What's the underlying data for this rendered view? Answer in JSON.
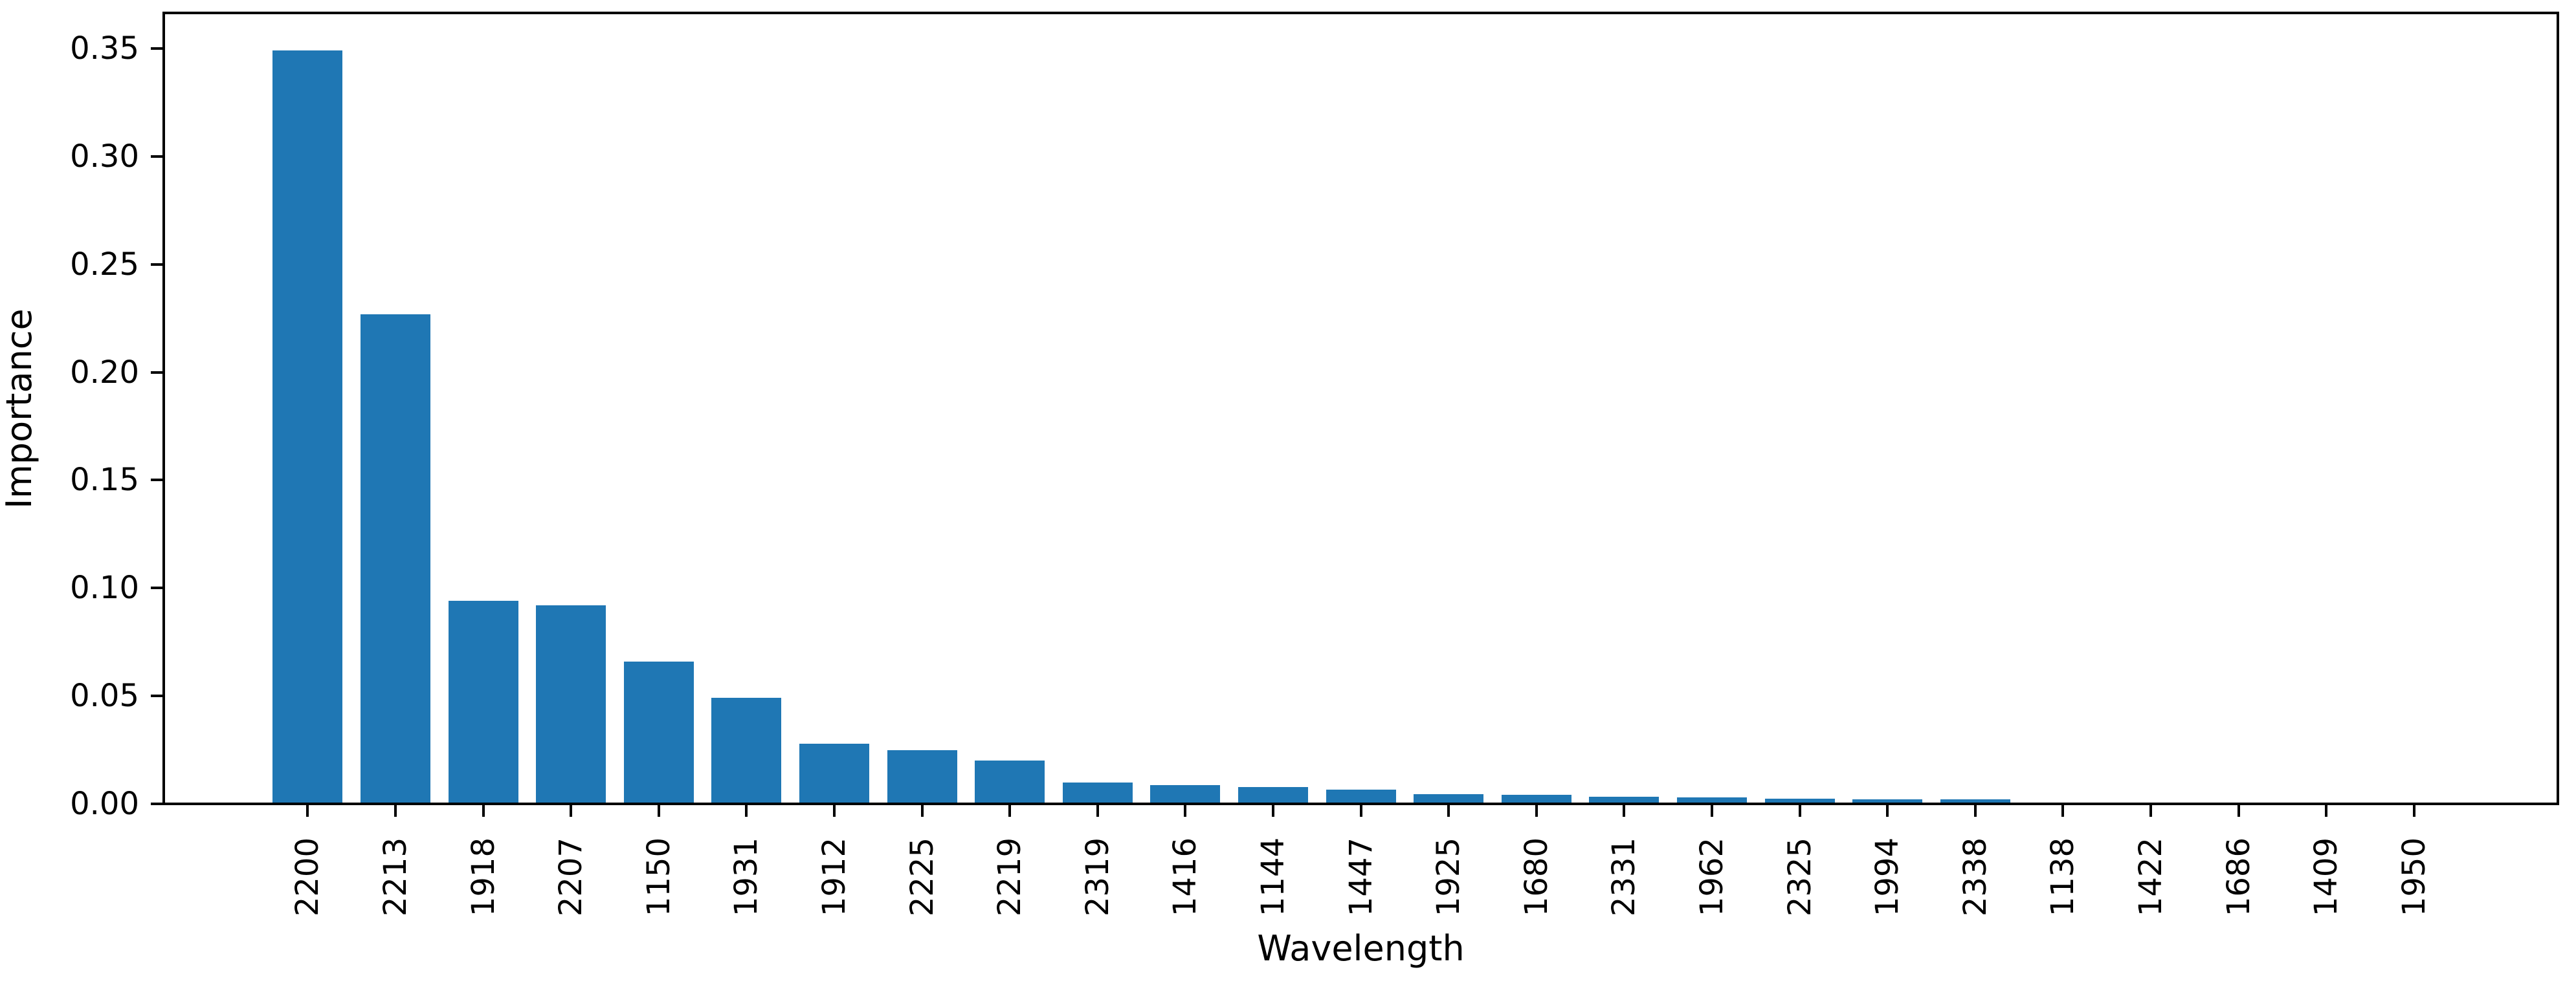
{
  "chart_data": {
    "type": "bar",
    "title": "",
    "xlabel": "Wavelength",
    "ylabel": "Importance",
    "categories": [
      "2200",
      "2213",
      "1918",
      "2207",
      "1150",
      "1931",
      "1912",
      "2225",
      "2219",
      "2319",
      "1416",
      "1144",
      "1447",
      "1925",
      "1680",
      "2331",
      "1962",
      "2325",
      "1994",
      "2338",
      "1138",
      "1422",
      "1686",
      "1409",
      "1950"
    ],
    "values": [
      0.349,
      0.227,
      0.094,
      0.092,
      0.066,
      0.049,
      0.028,
      0.025,
      0.02,
      0.01,
      0.0088,
      0.0077,
      0.0067,
      0.0044,
      0.0042,
      0.0032,
      0.003,
      0.0024,
      0.0022,
      0.0021,
      0.0007,
      0.0005,
      0.0004,
      0.0003,
      0.0002
    ],
    "ytick_labels": [
      "0.00",
      "0.05",
      "0.10",
      "0.15",
      "0.20",
      "0.25",
      "0.30",
      "0.35"
    ],
    "ylim": [
      0,
      0.367
    ],
    "grid": false,
    "legend": null,
    "bar_color": "#1f77b4",
    "axis_color": "#000000",
    "background_color": "#ffffff"
  }
}
